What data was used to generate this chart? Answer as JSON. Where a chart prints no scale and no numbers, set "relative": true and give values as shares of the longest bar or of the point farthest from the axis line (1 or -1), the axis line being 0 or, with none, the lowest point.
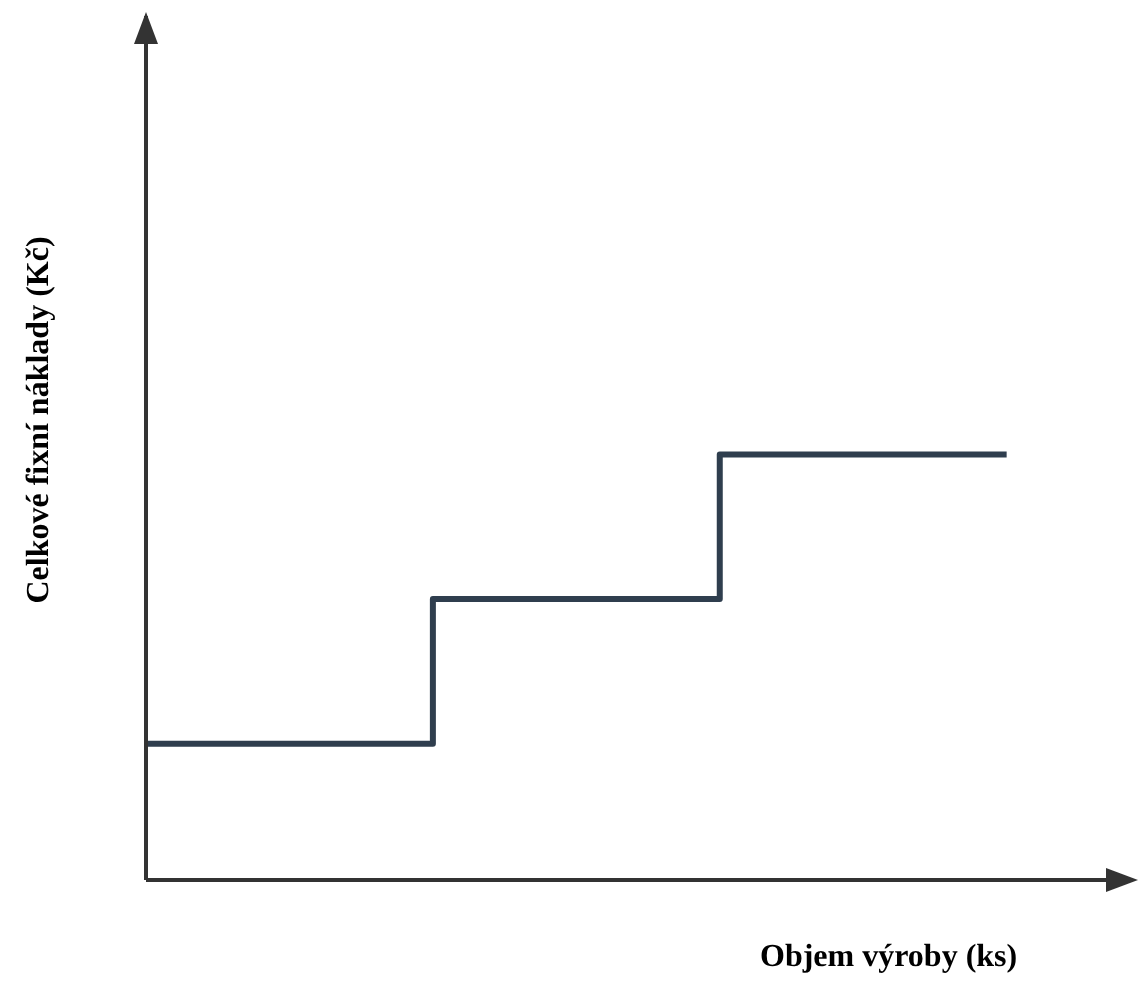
{
  "chart_data": {
    "type": "step",
    "relative": true,
    "xlabel": "Objem výroby (ks)",
    "ylabel": "Celkové fixní náklady (Kč)",
    "categories": [
      null,
      null,
      null,
      null
    ],
    "series": [
      {
        "color": "#2f3e4e",
        "values": [
          0.32,
          0.66,
          1,
          1
        ]
      }
    ]
  }
}
